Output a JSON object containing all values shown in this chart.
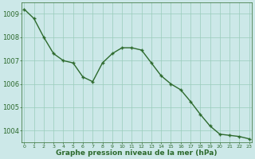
{
  "x": [
    0,
    1,
    2,
    3,
    4,
    5,
    6,
    7,
    8,
    9,
    10,
    11,
    12,
    13,
    14,
    15,
    16,
    17,
    18,
    19,
    20,
    21,
    22,
    23
  ],
  "y": [
    1009.2,
    1008.8,
    1008.0,
    1007.3,
    1007.0,
    1006.9,
    1006.3,
    1006.1,
    1006.9,
    1007.3,
    1007.55,
    1007.55,
    1007.45,
    1006.9,
    1006.35,
    1006.0,
    1005.75,
    1005.25,
    1004.7,
    1004.2,
    1003.85,
    1003.8,
    1003.75,
    1003.65
  ],
  "line_color": "#2d6a2d",
  "marker_color": "#2d6a2d",
  "background_color": "#cce8e8",
  "grid_color": "#99ccbb",
  "xlabel": "Graphe pression niveau de la mer (hPa)",
  "xlabel_color": "#2d6a2d",
  "tick_color": "#2d6a2d",
  "ylim": [
    1003.5,
    1009.5
  ],
  "xlim": [
    -0.3,
    23.3
  ],
  "yticks": [
    1004,
    1005,
    1006,
    1007,
    1008,
    1009
  ],
  "xticks": [
    0,
    1,
    2,
    3,
    4,
    5,
    6,
    7,
    8,
    9,
    10,
    11,
    12,
    13,
    14,
    15,
    16,
    17,
    18,
    19,
    20,
    21,
    22,
    23
  ],
  "spine_color": "#2d6a2d",
  "marker_size": 3.5,
  "line_width": 1.0,
  "ytick_fontsize": 6.0,
  "xtick_fontsize": 4.5,
  "xlabel_fontsize": 6.5
}
